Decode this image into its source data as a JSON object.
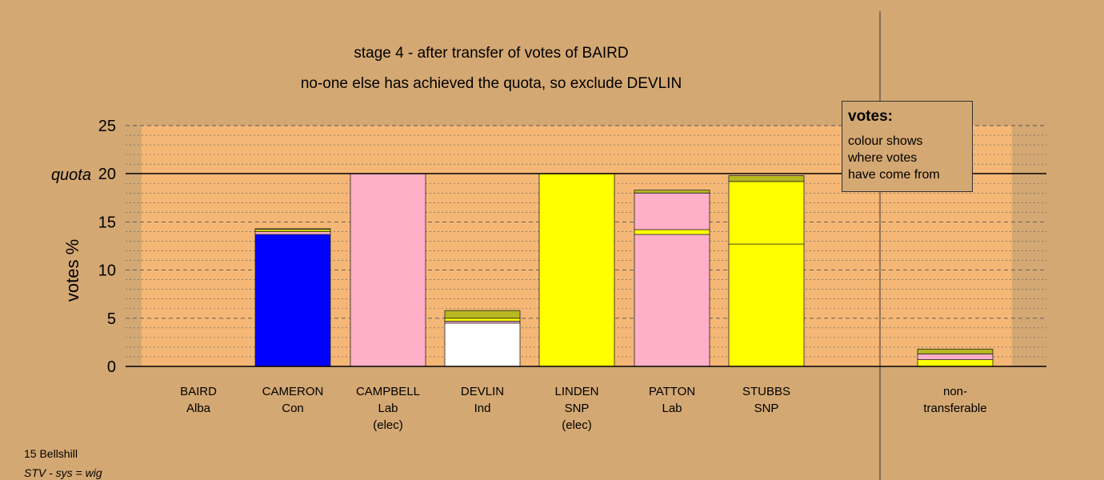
{
  "chart_data": {
    "type": "bar",
    "stacked": true,
    "title": "stage 4 - after transfer of votes of BAIRD",
    "subtitle": "no-one else has achieved the quota, so exclude DEVLIN",
    "ylabel": "votes %",
    "ylim": [
      0,
      25
    ],
    "yticks": [
      "0",
      "5",
      "10",
      "15",
      "20",
      "25"
    ],
    "quota": {
      "value": 20,
      "label": "quota"
    },
    "grid": true,
    "categories": [
      {
        "name": "BAIRD",
        "party": "Alba",
        "note": ""
      },
      {
        "name": "CAMERON",
        "party": "Con",
        "note": ""
      },
      {
        "name": "CAMPBELL",
        "party": "Lab",
        "note": "(elec)"
      },
      {
        "name": "DEVLIN",
        "party": "Ind",
        "note": ""
      },
      {
        "name": "LINDEN",
        "party": "SNP",
        "note": "(elec)"
      },
      {
        "name": "PATTON",
        "party": "Lab",
        "note": ""
      },
      {
        "name": "STUBBS",
        "party": "SNP",
        "note": ""
      },
      {
        "name": "non-",
        "party": "transferable",
        "note": ""
      }
    ],
    "stacks": [
      [],
      [
        {
          "from": "Con",
          "color": "#0000ff",
          "value": 13.7
        },
        {
          "from": "Lab",
          "color": "#ffb0c8",
          "value": 0.3
        },
        {
          "from": "SNP",
          "color": "#ffff00",
          "value": 0.2
        },
        {
          "from": "Alba",
          "color": "#b8b820",
          "value": 0.1
        }
      ],
      [
        {
          "from": "Lab",
          "color": "#ffb0c8",
          "value": 20.0
        }
      ],
      [
        {
          "from": "Ind",
          "color": "#ffffff",
          "value": 4.5
        },
        {
          "from": "Lab",
          "color": "#ffb0c8",
          "value": 0.2
        },
        {
          "from": "SNP",
          "color": "#ffff00",
          "value": 0.3
        },
        {
          "from": "Alba",
          "color": "#b8b820",
          "value": 0.8
        }
      ],
      [
        {
          "from": "SNP",
          "color": "#ffff00",
          "value": 20.0
        }
      ],
      [
        {
          "from": "Lab",
          "color": "#ffb0c8",
          "value": 13.7
        },
        {
          "from": "SNP",
          "color": "#ffff00",
          "value": 0.5
        },
        {
          "from": "Lab",
          "color": "#ffb0c8",
          "value": 3.8
        },
        {
          "from": "Alba",
          "color": "#b8b820",
          "value": 0.3
        }
      ],
      [
        {
          "from": "SNP",
          "color": "#ffff00",
          "value": 12.7
        },
        {
          "from": "SNP",
          "color": "#ffff00",
          "value": 6.5
        },
        {
          "from": "Alba",
          "color": "#b8b820",
          "value": 0.6
        }
      ],
      [
        {
          "from": "SNP",
          "color": "#ffff00",
          "value": 0.7
        },
        {
          "from": "Lab",
          "color": "#ffb0c8",
          "value": 0.6
        },
        {
          "from": "Alba",
          "color": "#b8b820",
          "value": 0.5
        }
      ]
    ]
  },
  "legend": {
    "title": "votes:",
    "lines": [
      "colour shows",
      "where votes",
      "have come from"
    ]
  },
  "footer": {
    "constituency": "15 Bellshill",
    "system": "STV - sys = wig"
  },
  "colors": {
    "background": "#d4a873",
    "plot_area": "#f5b776",
    "Con": "#0000ff",
    "Lab": "#ffb0c8",
    "SNP": "#ffff00",
    "Alba": "#b8b820",
    "Ind": "#ffffff"
  }
}
